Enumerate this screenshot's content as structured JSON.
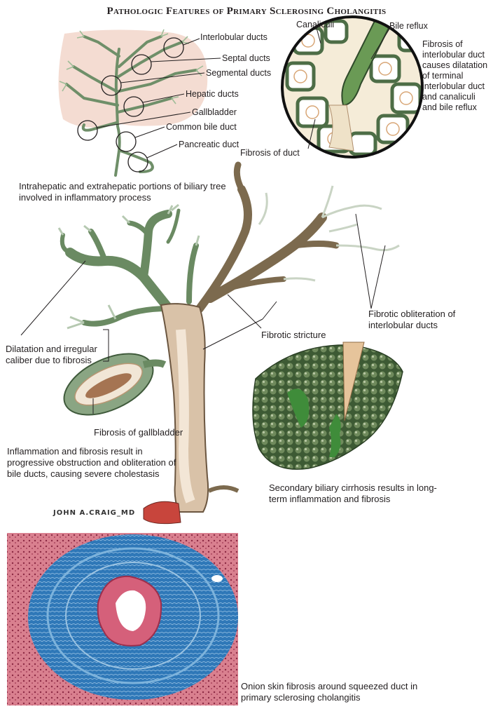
{
  "title": "Pathologic Features of Primary Sclerosing Cholangitis",
  "tree_labels": {
    "interlobular": "Interlobular ducts",
    "septal": "Septal ducts",
    "segmental": "Segmental ducts",
    "hepatic": "Hepatic ducts",
    "gallbladder": "Gallbladder",
    "common_bile": "Common bile duct",
    "pancreatic": "Pancreatic duct"
  },
  "tree_caption": "Intrahepatic and extrahepatic portions of biliary tree involved in inflammatory process",
  "inset_labels": {
    "canaliculi": "Canaliculi",
    "bile_reflux": "Bile reflux",
    "fibrosis_duct": "Fibrosis of duct",
    "description": "Fibrosis of interlobular duct causes dilatation of terminal interlobular duct and canaliculi and bile reflux"
  },
  "main_labels": {
    "dilatation": "Dilatation and irregular caliber due to fibrosis",
    "fibrotic_stricture": "Fibrotic stricture",
    "fibrotic_obliteration": "Fibrotic obliteration of interlobular ducts",
    "fibrosis_gallbladder": "Fibrosis of gallbladder",
    "inflammation_caption": "Inflammation and fibrosis result in progressive obstruction and obliteration of bile ducts, causing severe cholestasis"
  },
  "cirrhosis_caption": "Secondary biliary cirrhosis results in long-term inflammation and fibrosis",
  "histology_caption": "Onion skin fibrosis around squeezed duct in primary sclerosing cholangitis",
  "colors": {
    "duct_green": "#a9c4a2",
    "duct_dark": "#4f6e4a",
    "liver_pink": "#f4dcd2",
    "fibrosis_tan": "#c9a78a",
    "cirrhosis_green": "#3d5a34",
    "histology_blue": "#3a86c2",
    "histology_red": "#c44c63"
  }
}
